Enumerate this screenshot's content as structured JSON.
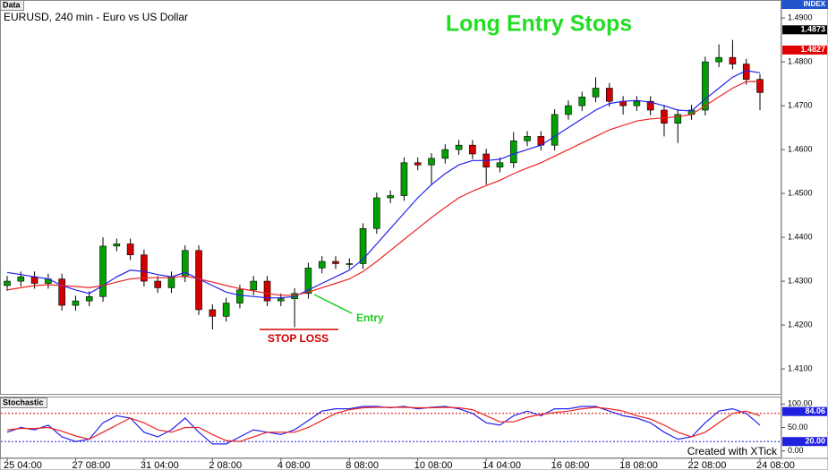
{
  "chart_data": [
    {
      "type": "candlestick",
      "title": "Long Entry Stops",
      "subtitle": "EURUSD, 240 min - Euro vs US Dollar",
      "panel_label": "Data",
      "axis_label": "INDEX",
      "categories": [
        "25 04:00",
        null,
        null,
        null,
        null,
        "27 08:00",
        null,
        null,
        null,
        null,
        "31 04:00",
        null,
        null,
        null,
        null,
        "2 08:00",
        null,
        null,
        null,
        null,
        "4 08:00",
        null,
        null,
        null,
        null,
        "8 08:00",
        null,
        null,
        null,
        null,
        "10 08:00",
        null,
        null,
        null,
        null,
        "14 04:00",
        null,
        null,
        null,
        null,
        "16 08:00",
        null,
        null,
        null,
        null,
        "18 08:00",
        null,
        null,
        null,
        null,
        "22 08:00",
        null,
        null,
        null,
        null,
        "24 08:00"
      ],
      "open": [
        1.429,
        1.43,
        1.431,
        1.4295,
        1.4305,
        1.4245,
        1.4255,
        1.4265,
        1.438,
        1.4385,
        1.436,
        1.43,
        1.4285,
        1.431,
        1.437,
        1.4235,
        1.422,
        1.425,
        1.428,
        1.43,
        1.4255,
        1.426,
        1.4272,
        1.433,
        1.4345,
        1.434,
        1.434,
        1.442,
        1.449,
        1.4495,
        1.457,
        1.4565,
        1.458,
        1.46,
        1.461,
        1.459,
        1.456,
        1.457,
        1.462,
        1.463,
        1.461,
        1.468,
        1.47,
        1.472,
        1.474,
        1.471,
        1.47,
        1.471,
        1.469,
        1.466,
        1.468,
        1.469,
        1.48,
        1.481,
        1.4795,
        1.476
      ],
      "high": [
        1.4312,
        1.4322,
        1.4322,
        1.4317,
        1.4317,
        1.4267,
        1.4277,
        1.44,
        1.4397,
        1.4397,
        1.4372,
        1.4312,
        1.4322,
        1.4382,
        1.4382,
        1.4247,
        1.4262,
        1.4292,
        1.4312,
        1.4312,
        1.4272,
        1.4284,
        1.4342,
        1.4357,
        1.4357,
        1.4352,
        1.4432,
        1.4502,
        1.4507,
        1.4582,
        1.4582,
        1.4592,
        1.4612,
        1.4622,
        1.4622,
        1.4602,
        1.4582,
        1.464,
        1.4642,
        1.4642,
        1.4692,
        1.4712,
        1.4732,
        1.4765,
        1.4752,
        1.4722,
        1.4722,
        1.4722,
        1.4702,
        1.4692,
        1.4702,
        1.4812,
        1.484,
        1.485,
        1.4807,
        1.4772
      ],
      "low": [
        1.4278,
        1.4288,
        1.4283,
        1.4283,
        1.4233,
        1.4233,
        1.4243,
        1.4253,
        1.4368,
        1.4348,
        1.4288,
        1.4273,
        1.4273,
        1.4298,
        1.4223,
        1.419,
        1.4208,
        1.4238,
        1.4268,
        1.4243,
        1.4243,
        1.4195,
        1.426,
        1.4318,
        1.4328,
        1.4328,
        1.4328,
        1.4408,
        1.4478,
        1.4483,
        1.4553,
        1.452,
        1.4568,
        1.4588,
        1.4578,
        1.452,
        1.4548,
        1.4558,
        1.4608,
        1.4598,
        1.4598,
        1.4668,
        1.4688,
        1.4708,
        1.4698,
        1.468,
        1.4688,
        1.4678,
        1.463,
        1.4615,
        1.4668,
        1.4678,
        1.4788,
        1.4783,
        1.4748,
        1.469
      ],
      "close": [
        1.43,
        1.431,
        1.4295,
        1.4305,
        1.4245,
        1.4255,
        1.4265,
        1.438,
        1.4385,
        1.436,
        1.43,
        1.4285,
        1.431,
        1.437,
        1.4235,
        1.422,
        1.425,
        1.428,
        1.43,
        1.4255,
        1.426,
        1.4272,
        1.433,
        1.4345,
        1.434,
        1.434,
        1.442,
        1.449,
        1.4495,
        1.457,
        1.4565,
        1.458,
        1.46,
        1.461,
        1.459,
        1.456,
        1.457,
        1.462,
        1.463,
        1.461,
        1.468,
        1.47,
        1.472,
        1.474,
        1.471,
        1.47,
        1.471,
        1.469,
        1.466,
        1.468,
        1.469,
        1.48,
        1.481,
        1.4795,
        1.476,
        1.473
      ],
      "up_color": "#00a000",
      "down_color": "#d00000",
      "series": [
        {
          "color": "#2222ee",
          "values": [
            1.432,
            1.4315,
            1.431,
            1.4305,
            1.429,
            1.428,
            1.4272,
            1.429,
            1.431,
            1.4325,
            1.4322,
            1.4315,
            1.431,
            1.432,
            1.4305,
            1.429,
            1.4275,
            1.4268,
            1.4265,
            1.4262,
            1.4262,
            1.4265,
            1.428,
            1.4295,
            1.431,
            1.4325,
            1.435,
            1.4385,
            1.442,
            1.4455,
            1.449,
            1.452,
            1.4545,
            1.4565,
            1.4575,
            1.4575,
            1.4578,
            1.459,
            1.46,
            1.461,
            1.463,
            1.465,
            1.467,
            1.469,
            1.4705,
            1.471,
            1.4712,
            1.4708,
            1.47,
            1.469,
            1.4688,
            1.4715,
            1.474,
            1.4765,
            1.478,
            1.4775
          ]
        },
        {
          "color": "#ee2222",
          "values": [
            1.428,
            1.4285,
            1.429,
            1.4292,
            1.429,
            1.4288,
            1.4285,
            1.429,
            1.4298,
            1.4305,
            1.4308,
            1.4308,
            1.4308,
            1.4312,
            1.4305,
            1.4298,
            1.429,
            1.4283,
            1.4278,
            1.4272,
            1.4268,
            1.4268,
            1.4275,
            1.4285,
            1.4295,
            1.4305,
            1.4322,
            1.4345,
            1.437,
            1.4395,
            1.442,
            1.4445,
            1.4468,
            1.449,
            1.4505,
            1.4518,
            1.453,
            1.4545,
            1.4558,
            1.457,
            1.4585,
            1.46,
            1.4615,
            1.463,
            1.4645,
            1.4655,
            1.4665,
            1.467,
            1.4672,
            1.4675,
            1.468,
            1.47,
            1.472,
            1.474,
            1.4755,
            1.4755
          ]
        }
      ],
      "ylim": [
        1.4043,
        1.4941
      ],
      "yticks": [
        {
          "value": 1.41,
          "label": "1.4100"
        },
        {
          "value": 1.42,
          "label": "1.4200"
        },
        {
          "value": 1.43,
          "label": "1.4300"
        },
        {
          "value": 1.44,
          "label": "1.4400"
        },
        {
          "value": 1.45,
          "label": "1.4500"
        },
        {
          "value": 1.46,
          "label": "1.4600"
        },
        {
          "value": 1.47,
          "label": "1.4700"
        },
        {
          "value": 1.48,
          "label": "1.4800"
        },
        {
          "value": 1.49,
          "label": "1.4900"
        }
      ],
      "markers": [
        {
          "value": 1.4873,
          "label": "1.4873",
          "color": "#000000"
        },
        {
          "value": 1.4827,
          "label": "1.4827",
          "color": "#e00000"
        }
      ],
      "stop_loss": {
        "value": 1.419,
        "label": "STOP LOSS",
        "color": "#d00000"
      },
      "entry": {
        "label": "Entry",
        "color": "#22cc22"
      }
    },
    {
      "type": "line",
      "title": "Stochastic",
      "footer": "Created with XTick",
      "series": [
        {
          "color": "#2222ee",
          "values": [
            40,
            50,
            45,
            55,
            30,
            20,
            25,
            60,
            75,
            70,
            40,
            30,
            45,
            70,
            40,
            15,
            15,
            30,
            45,
            40,
            35,
            45,
            65,
            85,
            90,
            90,
            95,
            95,
            92,
            95,
            90,
            93,
            95,
            90,
            80,
            60,
            55,
            75,
            85,
            75,
            90,
            90,
            95,
            95,
            85,
            75,
            70,
            60,
            40,
            25,
            30,
            60,
            85,
            90,
            80,
            55
          ]
        },
        {
          "color": "#ee2222",
          "values": [
            45,
            48,
            48,
            50,
            42,
            32,
            25,
            40,
            55,
            70,
            60,
            45,
            40,
            50,
            50,
            35,
            22,
            20,
            30,
            40,
            40,
            40,
            50,
            65,
            80,
            88,
            92,
            93,
            93,
            93,
            92,
            92,
            93,
            92,
            88,
            75,
            62,
            62,
            72,
            78,
            82,
            85,
            90,
            93,
            90,
            85,
            75,
            68,
            55,
            40,
            30,
            40,
            60,
            80,
            85,
            75
          ]
        }
      ],
      "ylim": [
        -12,
        114
      ],
      "yticks": [
        {
          "value": 0,
          "label": "0.00"
        },
        {
          "value": 50,
          "label": "50.00"
        },
        {
          "value": 100,
          "label": "100.00"
        }
      ],
      "levels": [
        {
          "value": 80,
          "color": "#e00000"
        },
        {
          "value": 20,
          "label": "20.00",
          "color": "#2020e0"
        }
      ],
      "markers": [
        {
          "value": 84.06,
          "label": "84.06",
          "color": "#2020e0"
        }
      ]
    }
  ]
}
